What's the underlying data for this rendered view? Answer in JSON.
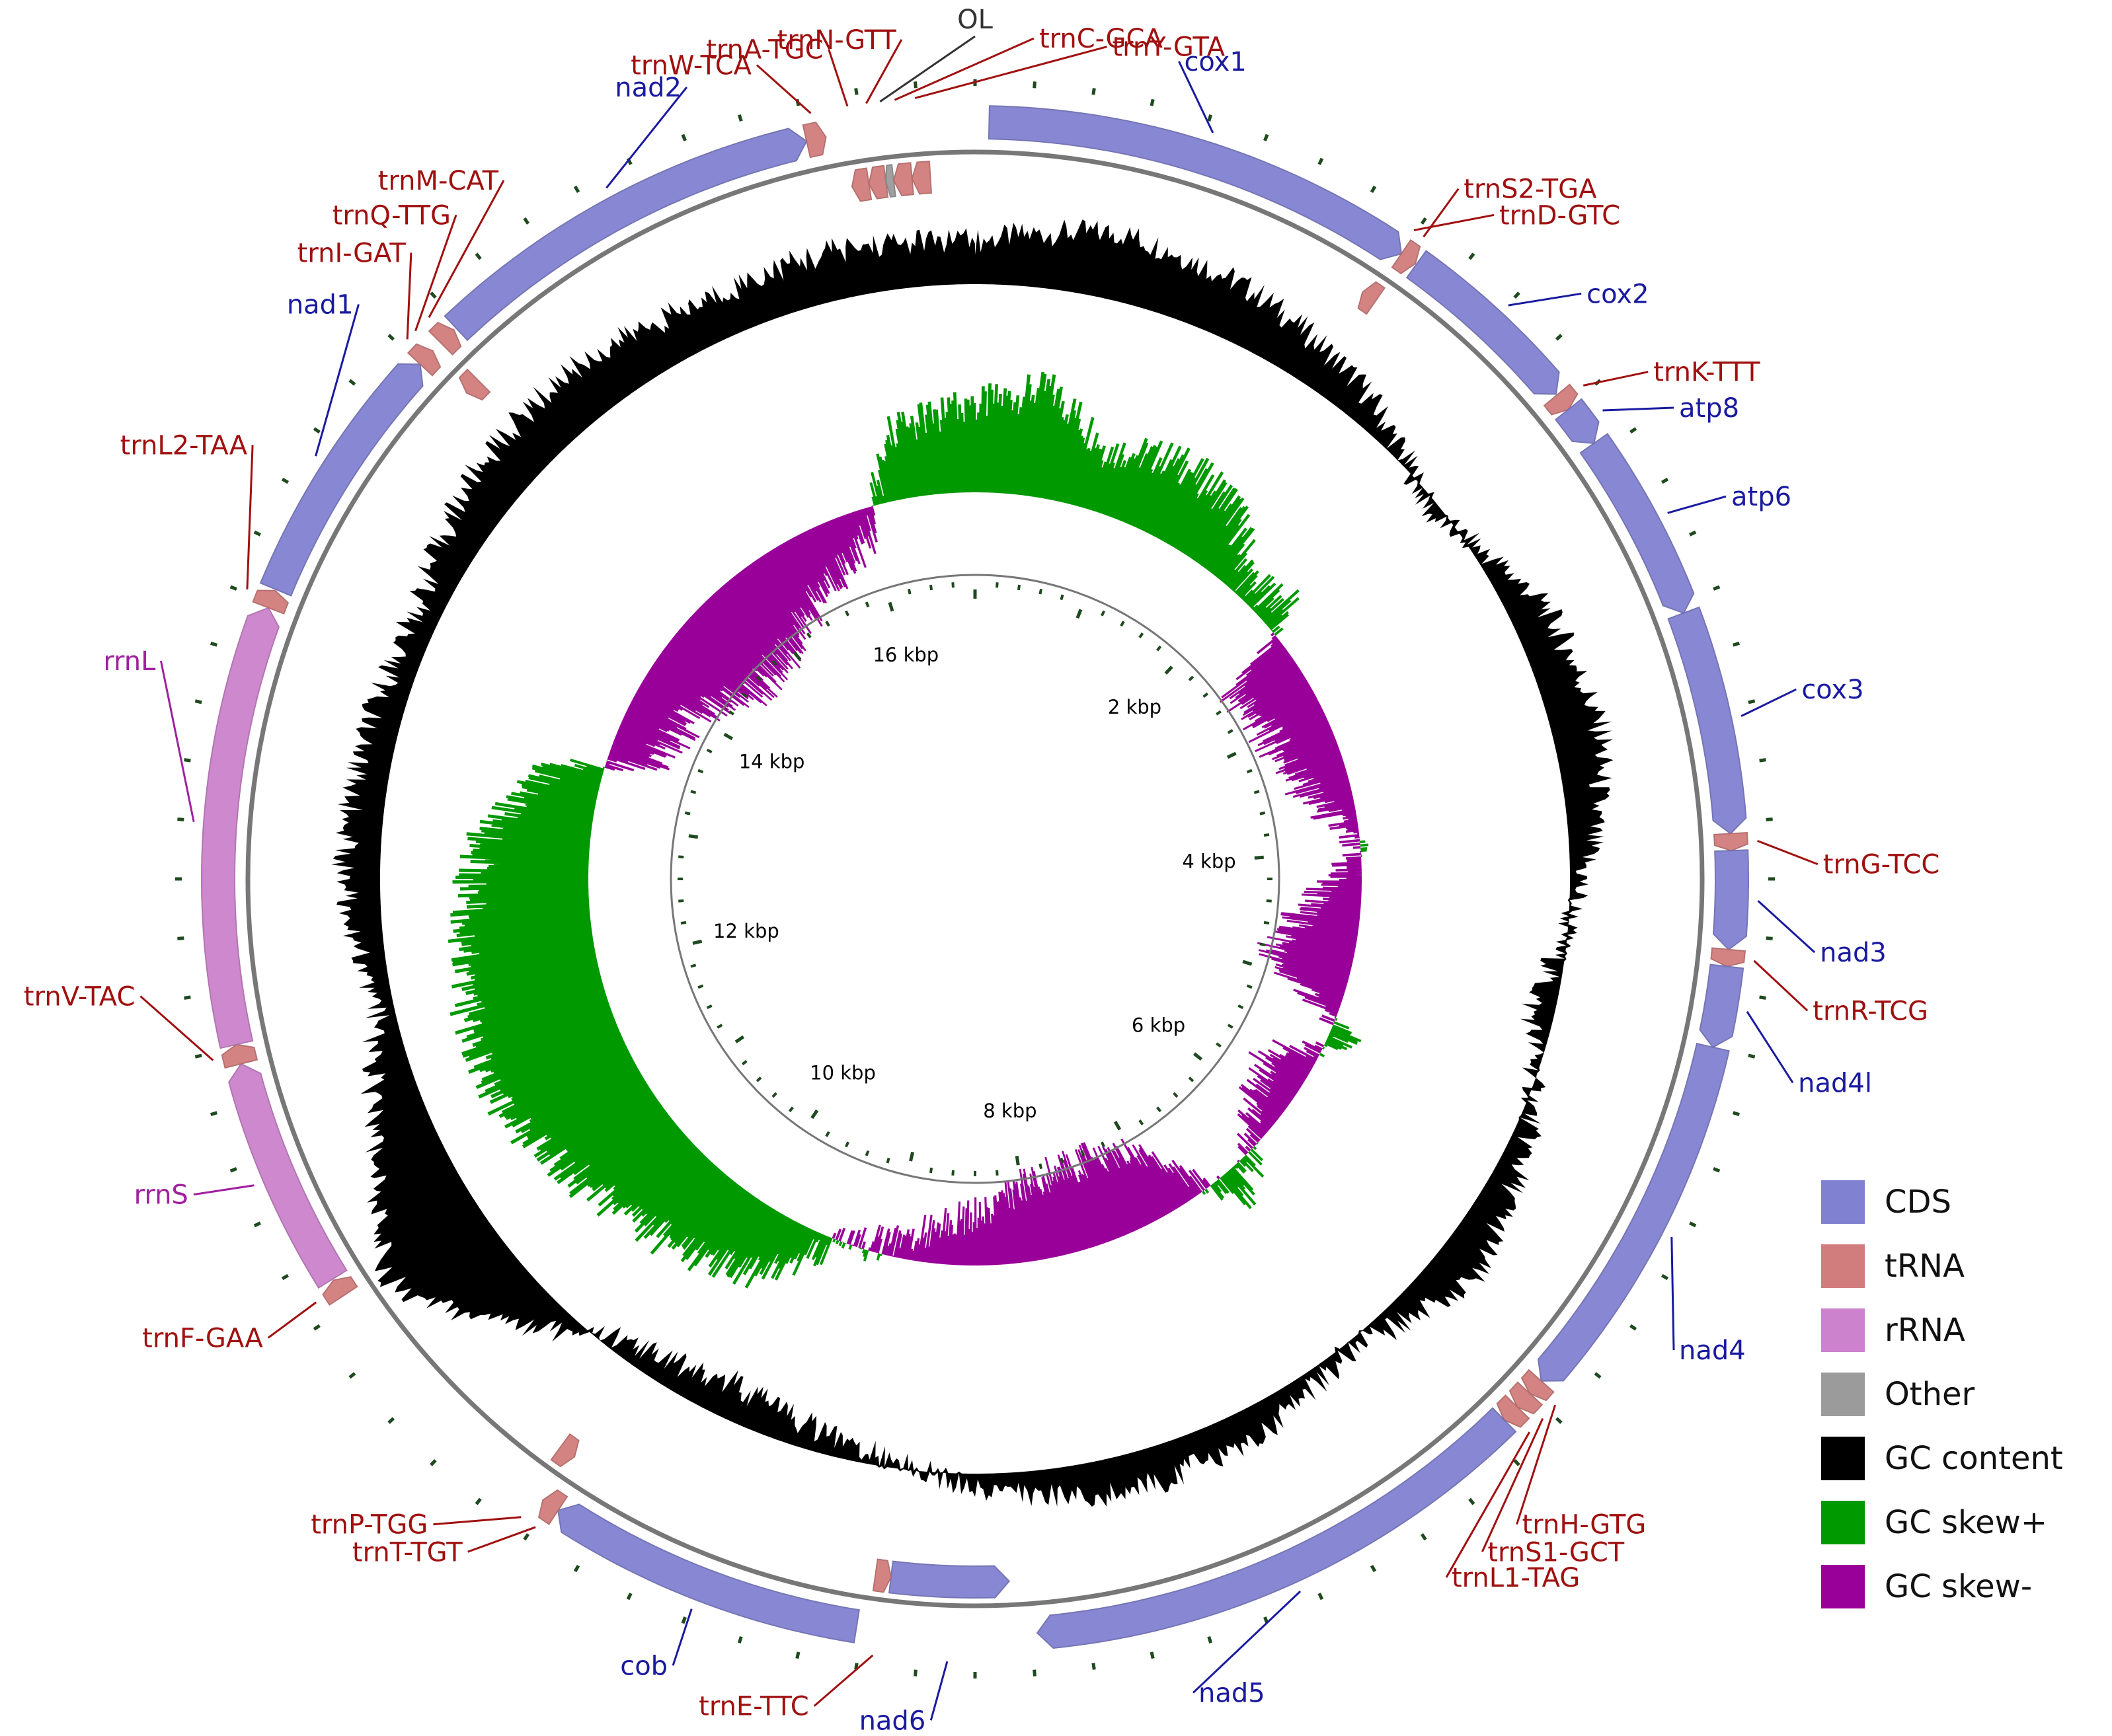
{
  "chart_data": {
    "type": "circular-genome-map",
    "genome_length": 16800,
    "colors": {
      "CDS": "#8181d1",
      "tRNA": "#d27d7d",
      "rRNA": "#cc82cc",
      "Other": "#9b9b9b",
      "GC content": "#000000",
      "GC skew+": "#009900",
      "GC skew-": "#990099",
      "cds_label": "#1a1aa0",
      "trna_label": "#a01010",
      "rrna_label": "#a020a0",
      "other_label": "#333333"
    },
    "features": [
      {
        "name": "cox1",
        "type": "CDS",
        "start": 50,
        "end": 1600,
        "strand": "+"
      },
      {
        "name": "trnS2-TGA",
        "type": "tRNA",
        "start": 1600,
        "end": 1660,
        "strand": "+"
      },
      {
        "name": "trnD-GTC",
        "type": "tRNA",
        "start": 1560,
        "end": 1620,
        "strand": "-"
      },
      {
        "name": "cox2",
        "type": "CDS",
        "start": 1665,
        "end": 2340,
        "strand": "+"
      },
      {
        "name": "trnK-TTT",
        "type": "tRNA",
        "start": 2345,
        "end": 2410,
        "strand": "+"
      },
      {
        "name": "atp8",
        "type": "CDS",
        "start": 2410,
        "end": 2560,
        "strand": "+"
      },
      {
        "name": "atp6",
        "type": "CDS",
        "start": 2560,
        "end": 3240,
        "strand": "+"
      },
      {
        "name": "cox3",
        "type": "CDS",
        "start": 3240,
        "end": 4040,
        "strand": "+"
      },
      {
        "name": "trnG-TCC",
        "type": "tRNA",
        "start": 4040,
        "end": 4100,
        "strand": "+"
      },
      {
        "name": "nad3",
        "type": "CDS",
        "start": 4100,
        "end": 4450,
        "strand": "+"
      },
      {
        "name": "trnR-TCG",
        "type": "tRNA",
        "start": 4450,
        "end": 4510,
        "strand": "+"
      },
      {
        "name": "nad4l",
        "type": "CDS",
        "start": 4510,
        "end": 4800,
        "strand": "+"
      },
      {
        "name": "nad4",
        "type": "CDS",
        "start": 4800,
        "end": 6140,
        "strand": "+"
      },
      {
        "name": "trnH-GTG",
        "type": "tRNA",
        "start": 6140,
        "end": 6200,
        "strand": "+"
      },
      {
        "name": "trnS1-GCT",
        "type": "tRNA",
        "start": 6200,
        "end": 6265,
        "strand": "+"
      },
      {
        "name": "trnL1-TAG",
        "type": "tRNA",
        "start": 6265,
        "end": 6330,
        "strand": "+"
      },
      {
        "name": "nad5",
        "type": "CDS",
        "start": 6330,
        "end": 8180,
        "strand": "+"
      },
      {
        "name": "nad6",
        "type": "CDS",
        "start": 8270,
        "end": 8720,
        "strand": "-"
      },
      {
        "name": "trnE-TTC",
        "type": "tRNA",
        "start": 8720,
        "end": 8780,
        "strand": "-"
      },
      {
        "name": "cob",
        "type": "CDS",
        "start": 8820,
        "end": 9960,
        "strand": "+"
      },
      {
        "name": "trnT-TGT",
        "type": "tRNA",
        "start": 9960,
        "end": 10025,
        "strand": "+"
      },
      {
        "name": "trnP-TGG",
        "type": "tRNA",
        "start": 10020,
        "end": 10085,
        "strand": "-"
      },
      {
        "name": "trnF-GAA",
        "type": "tRNA",
        "start": 11040,
        "end": 11105,
        "strand": "+"
      },
      {
        "name": "rrnS",
        "type": "rRNA",
        "start": 11110,
        "end": 11940,
        "strand": "+"
      },
      {
        "name": "trnV-TAC",
        "type": "tRNA",
        "start": 11940,
        "end": 12010,
        "strand": "+"
      },
      {
        "name": "rrnL",
        "type": "rRNA",
        "start": 12010,
        "end": 13580,
        "strand": "+"
      },
      {
        "name": "trnL2-TAA",
        "type": "tRNA",
        "start": 13580,
        "end": 13645,
        "strand": "+"
      },
      {
        "name": "nad1",
        "type": "CDS",
        "start": 13650,
        "end": 14600,
        "strand": "+"
      },
      {
        "name": "trnI-GAT",
        "type": "tRNA",
        "start": 14600,
        "end": 14665,
        "strand": "+"
      },
      {
        "name": "trnQ-TTG",
        "type": "tRNA",
        "start": 14640,
        "end": 14705,
        "strand": "-"
      },
      {
        "name": "trnM-CAT",
        "type": "tRNA",
        "start": 14705,
        "end": 14770,
        "strand": "+"
      },
      {
        "name": "nad2",
        "type": "CDS",
        "start": 14780,
        "end": 16200,
        "strand": "+"
      },
      {
        "name": "trnW-TCA",
        "type": "tRNA",
        "start": 16200,
        "end": 16270,
        "strand": "+"
      },
      {
        "name": "trnA-TGC",
        "type": "tRNA",
        "start": 16330,
        "end": 16395,
        "strand": "-"
      },
      {
        "name": "trnN-GTT",
        "type": "tRNA",
        "start": 16395,
        "end": 16460,
        "strand": "-"
      },
      {
        "name": "OL",
        "type": "Other",
        "start": 16460,
        "end": 16490,
        "strand": "-"
      },
      {
        "name": "trnC-GCA",
        "type": "tRNA",
        "start": 16490,
        "end": 16560,
        "strand": "-"
      },
      {
        "name": "trnY-GTA",
        "type": "tRNA",
        "start": 16560,
        "end": 16630,
        "strand": "-"
      }
    ],
    "labels": [
      {
        "text": "cox1",
        "type": "CDS",
        "anchor": "start",
        "angle": 14
      },
      {
        "text": "trnS2-TGA",
        "type": "tRNA",
        "anchor": "start",
        "angle": 35
      },
      {
        "text": "trnD-GTC",
        "type": "tRNA",
        "anchor": "start",
        "angle": 38
      },
      {
        "text": "cox2",
        "type": "CDS",
        "anchor": "start",
        "angle": 46
      },
      {
        "text": "trnK-TTT",
        "type": "tRNA",
        "anchor": "start",
        "angle": 53
      },
      {
        "text": "atp8",
        "type": "CDS",
        "anchor": "start",
        "angle": 56
      },
      {
        "text": "atp6",
        "type": "CDS",
        "anchor": "start",
        "angle": 63
      },
      {
        "text": "cox3",
        "type": "CDS",
        "anchor": "start",
        "angle": 77
      },
      {
        "text": "trnG-TCC",
        "type": "tRNA",
        "anchor": "start",
        "angle": 89
      },
      {
        "text": "nad3",
        "type": "CDS",
        "anchor": "start",
        "angle": 95
      },
      {
        "text": "trnR-TCG",
        "type": "tRNA",
        "anchor": "start",
        "angle": 99
      },
      {
        "text": "nad4l",
        "type": "CDS",
        "anchor": "start",
        "angle": 104
      },
      {
        "text": "nad4",
        "type": "CDS",
        "anchor": "start",
        "angle": 124
      },
      {
        "text": "trnH-GTG",
        "type": "tRNA",
        "anchor": "start",
        "angle": 140
      },
      {
        "text": "trnS1-GCT",
        "type": "tRNA",
        "anchor": "start",
        "angle": 143
      },
      {
        "text": "trnL1-TAG",
        "type": "tRNA",
        "anchor": "start",
        "angle": 146
      },
      {
        "text": "nad5",
        "type": "CDS",
        "anchor": "start",
        "angle": 165
      },
      {
        "text": "nad6",
        "type": "CDS",
        "anchor": "end",
        "angle": 183
      },
      {
        "text": "trnE-TTC",
        "type": "tRNA",
        "anchor": "end",
        "angle": 191
      },
      {
        "text": "cob",
        "type": "CDS",
        "anchor": "end",
        "angle": 201
      },
      {
        "text": "trnT-TGT",
        "type": "tRNA",
        "anchor": "end",
        "angle": 217
      },
      {
        "text": "trnP-TGG",
        "type": "tRNA",
        "anchor": "end",
        "angle": 220
      },
      {
        "text": "trnF-GAA",
        "type": "tRNA",
        "anchor": "end",
        "angle": 237
      },
      {
        "text": "rrnS",
        "type": "rRNA",
        "anchor": "end",
        "angle": 248
      },
      {
        "text": "trnV-TAC",
        "type": "tRNA",
        "anchor": "end",
        "angle": 262
      },
      {
        "text": "rrnL",
        "type": "rRNA",
        "anchor": "end",
        "angle": 285
      },
      {
        "text": "trnL2-TAA",
        "type": "tRNA",
        "anchor": "end",
        "angle": 301
      },
      {
        "text": "nad1",
        "type": "CDS",
        "anchor": "end",
        "angle": 313
      },
      {
        "text": "trnI-GAT",
        "type": "tRNA",
        "anchor": "end",
        "angle": 318
      },
      {
        "text": "trnQ-TTG",
        "type": "tRNA",
        "anchor": "end",
        "angle": 322
      },
      {
        "text": "trnM-CAT",
        "type": "tRNA",
        "anchor": "end",
        "angle": 326
      },
      {
        "text": "nad2",
        "type": "CDS",
        "anchor": "end",
        "angle": 340
      },
      {
        "text": "trnW-TCA",
        "type": "tRNA",
        "anchor": "end",
        "angle": 345
      },
      {
        "text": "trnA-TGC",
        "type": "tRNA",
        "anchor": "end",
        "angle": 350
      },
      {
        "text": "trnN-GTT",
        "type": "tRNA",
        "anchor": "end",
        "angle": 355
      },
      {
        "text": "OL",
        "type": "Other",
        "anchor": "middle",
        "angle": 0
      },
      {
        "text": "trnC-GCA",
        "type": "tRNA",
        "anchor": "start",
        "angle": 4
      },
      {
        "text": "trnY-GTA",
        "type": "tRNA",
        "anchor": "start",
        "angle": 9
      }
    ],
    "kbp_labels": [
      "2 kbp",
      "4 kbp",
      "6 kbp",
      "8 kbp",
      "10 kbp",
      "12 kbp",
      "14 kbp",
      "16 kbp"
    ],
    "kbp_positions": [
      2000,
      4000,
      6000,
      8000,
      10000,
      12000,
      14000,
      16000
    ],
    "gc_content_profile": {
      "description": "GC content deviation, fraction of max outward (positive) or inward (negative)",
      "points": [
        [
          0,
          0.35
        ],
        [
          600,
          0.55
        ],
        [
          1200,
          0.45
        ],
        [
          1800,
          0.25
        ],
        [
          2400,
          -0.1
        ],
        [
          3000,
          0.3
        ],
        [
          3600,
          0.4
        ],
        [
          4200,
          0.1
        ],
        [
          4800,
          -0.2
        ],
        [
          5400,
          0.15
        ],
        [
          6000,
          0.35
        ],
        [
          6600,
          0.05
        ],
        [
          7200,
          0.25
        ],
        [
          7800,
          0.3
        ],
        [
          8400,
          0.1
        ],
        [
          9000,
          -0.15
        ],
        [
          9600,
          -0.3
        ],
        [
          10200,
          -0.1
        ],
        [
          10800,
          0.75
        ],
        [
          11000,
          0.95
        ],
        [
          11400,
          0.55
        ],
        [
          12000,
          0.15
        ],
        [
          12600,
          0.3
        ],
        [
          13200,
          0.25
        ],
        [
          13800,
          0.2
        ],
        [
          14400,
          0.4
        ],
        [
          15000,
          0.45
        ],
        [
          15600,
          0.35
        ],
        [
          16200,
          0.4
        ],
        [
          16800,
          0.35
        ]
      ]
    },
    "gc_skew_profile": {
      "description": "GC skew, positive outward (green), negative inward (purple), fraction of max",
      "points": [
        [
          0,
          0.55
        ],
        [
          400,
          0.7
        ],
        [
          800,
          0.4
        ],
        [
          1200,
          0.5
        ],
        [
          1600,
          0.45
        ],
        [
          2000,
          0.1
        ],
        [
          2300,
          0.2
        ],
        [
          2500,
          -0.45
        ],
        [
          3000,
          -0.4
        ],
        [
          3500,
          -0.3
        ],
        [
          4000,
          -0.05
        ],
        [
          4400,
          -0.35
        ],
        [
          4900,
          -0.55
        ],
        [
          5300,
          0.15
        ],
        [
          5600,
          -0.3
        ],
        [
          6000,
          -0.25
        ],
        [
          6500,
          0.2
        ],
        [
          7000,
          -0.5
        ],
        [
          7500,
          -0.55
        ],
        [
          8000,
          -0.5
        ],
        [
          8500,
          -0.3
        ],
        [
          9000,
          -0.1
        ],
        [
          9400,
          0.05
        ],
        [
          9800,
          0.45
        ],
        [
          10400,
          0.6
        ],
        [
          11000,
          0.75
        ],
        [
          11600,
          0.95
        ],
        [
          12200,
          0.85
        ],
        [
          12800,
          0.7
        ],
        [
          13300,
          0.3
        ],
        [
          13500,
          -0.3
        ],
        [
          14000,
          -0.4
        ],
        [
          14500,
          -0.65
        ],
        [
          15000,
          -0.6
        ],
        [
          15500,
          -0.4
        ],
        [
          16000,
          -0.2
        ],
        [
          16300,
          0.45
        ],
        [
          16800,
          0.55
        ]
      ]
    }
  },
  "legend": {
    "items": [
      {
        "label": "CDS",
        "color": "#8181d1"
      },
      {
        "label": "tRNA",
        "color": "#d27d7d"
      },
      {
        "label": "rRNA",
        "color": "#cc82cc"
      },
      {
        "label": "Other",
        "color": "#9b9b9b"
      },
      {
        "label": "GC content",
        "color": "#000000"
      },
      {
        "label": "GC skew+",
        "color": "#009900"
      },
      {
        "label": "GC skew-",
        "color": "#990099"
      }
    ]
  }
}
